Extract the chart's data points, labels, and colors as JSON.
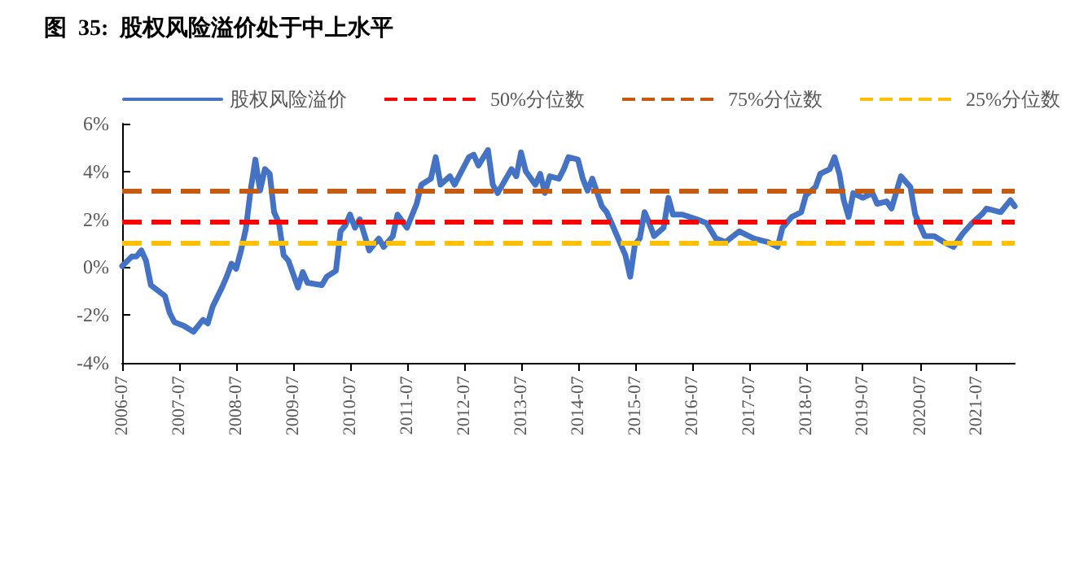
{
  "chart_data": {
    "type": "line",
    "title": "图  35:  股权风险溢价处于中上水平",
    "x": [
      "2006-07",
      "2006-09",
      "2006-10",
      "2006-11",
      "2006-12",
      "2007-01",
      "2007-04",
      "2007-05",
      "2007-06",
      "2007-08",
      "2007-10",
      "2007-12",
      "2008-01",
      "2008-02",
      "2008-04",
      "2008-05",
      "2008-06",
      "2008-07",
      "2008-08",
      "2008-09",
      "2008-10",
      "2008-11",
      "2008-12",
      "2009-01",
      "2009-02",
      "2009-03",
      "2009-04",
      "2009-05",
      "2009-06",
      "2009-08",
      "2009-09",
      "2009-10",
      "2010-01",
      "2010-02",
      "2010-04",
      "2010-05",
      "2010-06",
      "2010-07",
      "2010-08",
      "2010-09",
      "2010-11",
      "2011-01",
      "2011-02",
      "2011-04",
      "2011-05",
      "2011-07",
      "2011-09",
      "2011-10",
      "2011-12",
      "2012-01",
      "2012-02",
      "2012-04",
      "2012-05",
      "2012-08",
      "2012-09",
      "2012-10",
      "2012-12",
      "2013-01",
      "2013-02",
      "2013-05",
      "2013-06",
      "2013-07",
      "2013-08",
      "2013-10",
      "2013-11",
      "2013-12",
      "2014-01",
      "2014-03",
      "2014-04",
      "2014-05",
      "2014-07",
      "2014-08",
      "2014-09",
      "2014-10",
      "2014-12",
      "2015-01",
      "2015-02",
      "2015-04",
      "2015-05",
      "2015-06",
      "2015-07",
      "2015-08",
      "2015-09",
      "2015-10",
      "2015-11",
      "2016-01",
      "2016-02",
      "2016-03",
      "2016-05",
      "2016-08",
      "2016-10",
      "2016-12",
      "2017-02",
      "2017-05",
      "2017-08",
      "2017-11",
      "2018-01",
      "2018-02",
      "2018-04",
      "2018-06",
      "2018-07",
      "2018-09",
      "2018-10",
      "2018-12",
      "2019-01",
      "2019-02",
      "2019-03",
      "2019-04",
      "2019-05",
      "2019-07",
      "2019-09",
      "2019-10",
      "2019-12",
      "2020-01",
      "2020-03",
      "2020-05",
      "2020-06",
      "2020-08",
      "2020-10",
      "2020-12",
      "2021-02",
      "2021-04",
      "2021-06",
      "2021-08",
      "2021-09",
      "2021-12",
      "2022-02",
      "2022-03"
    ],
    "series": [
      {
        "name": "股权风险溢价",
        "color": "#4472c4",
        "values": [
          0.05,
          0.45,
          0.45,
          0.7,
          0.27,
          -0.75,
          -1.2,
          -1.9,
          -2.3,
          -2.45,
          -2.7,
          -2.2,
          -2.35,
          -1.65,
          -0.85,
          -0.4,
          0.15,
          -0.07,
          0.7,
          1.6,
          3.2,
          4.5,
          3.2,
          4.1,
          3.9,
          2.3,
          1.85,
          0.5,
          0.27,
          -0.85,
          -0.2,
          -0.65,
          -0.75,
          -0.4,
          -0.15,
          1.5,
          1.75,
          2.2,
          1.65,
          2.0,
          0.7,
          1.2,
          0.85,
          1.3,
          2.2,
          1.65,
          2.65,
          3.45,
          3.7,
          4.6,
          3.45,
          3.8,
          3.45,
          4.6,
          4.7,
          4.25,
          4.9,
          3.45,
          3.1,
          4.1,
          3.8,
          4.8,
          4.0,
          3.45,
          3.9,
          3.1,
          3.8,
          3.7,
          4.1,
          4.6,
          4.5,
          3.7,
          3.2,
          3.7,
          2.55,
          2.3,
          1.85,
          0.95,
          0.5,
          -0.4,
          0.95,
          1.2,
          2.3,
          1.85,
          1.3,
          1.65,
          2.9,
          2.2,
          2.2,
          2.0,
          1.85,
          1.2,
          1.05,
          1.5,
          1.2,
          1.05,
          0.85,
          1.65,
          2.1,
          2.3,
          3.0,
          3.35,
          3.9,
          4.1,
          4.6,
          3.9,
          2.8,
          2.1,
          3.1,
          2.9,
          3.1,
          2.65,
          2.75,
          2.45,
          3.8,
          3.35,
          2.2,
          1.3,
          1.3,
          1.05,
          0.85,
          1.4,
          1.85,
          2.2,
          2.45,
          2.3,
          2.8,
          2.55
        ]
      }
    ],
    "ref_lines": [
      {
        "axis": "y",
        "value": 1.9,
        "label": "50%分位数",
        "color": "#ff0000",
        "line_style": "dashed"
      },
      {
        "axis": "y",
        "value": 3.2,
        "label": "75%分位数",
        "color": "#c55a11",
        "line_style": "dashed"
      },
      {
        "axis": "y",
        "value": 1.0,
        "label": "25%分位数",
        "color": "#ffc000",
        "line_style": "dashed"
      }
    ],
    "xlim": [
      "2006-07",
      "2022-03"
    ],
    "xticks": [
      "2006-07",
      "2007-07",
      "2008-07",
      "2009-07",
      "2010-07",
      "2011-07",
      "2012-07",
      "2013-07",
      "2014-07",
      "2015-07",
      "2016-07",
      "2017-07",
      "2018-07",
      "2019-07",
      "2020-07",
      "2021-07"
    ],
    "ylim": [
      -4,
      6
    ],
    "yticks": [
      {
        "value": -4,
        "label": "-4%"
      },
      {
        "value": -2,
        "label": "-2%"
      },
      {
        "value": 0,
        "label": "0%"
      },
      {
        "value": 2,
        "label": "2%"
      },
      {
        "value": 4,
        "label": "4%"
      },
      {
        "value": 6,
        "label": "6%"
      }
    ],
    "grid": false,
    "legend": "top",
    "marker": "none",
    "line_style": "solid"
  }
}
